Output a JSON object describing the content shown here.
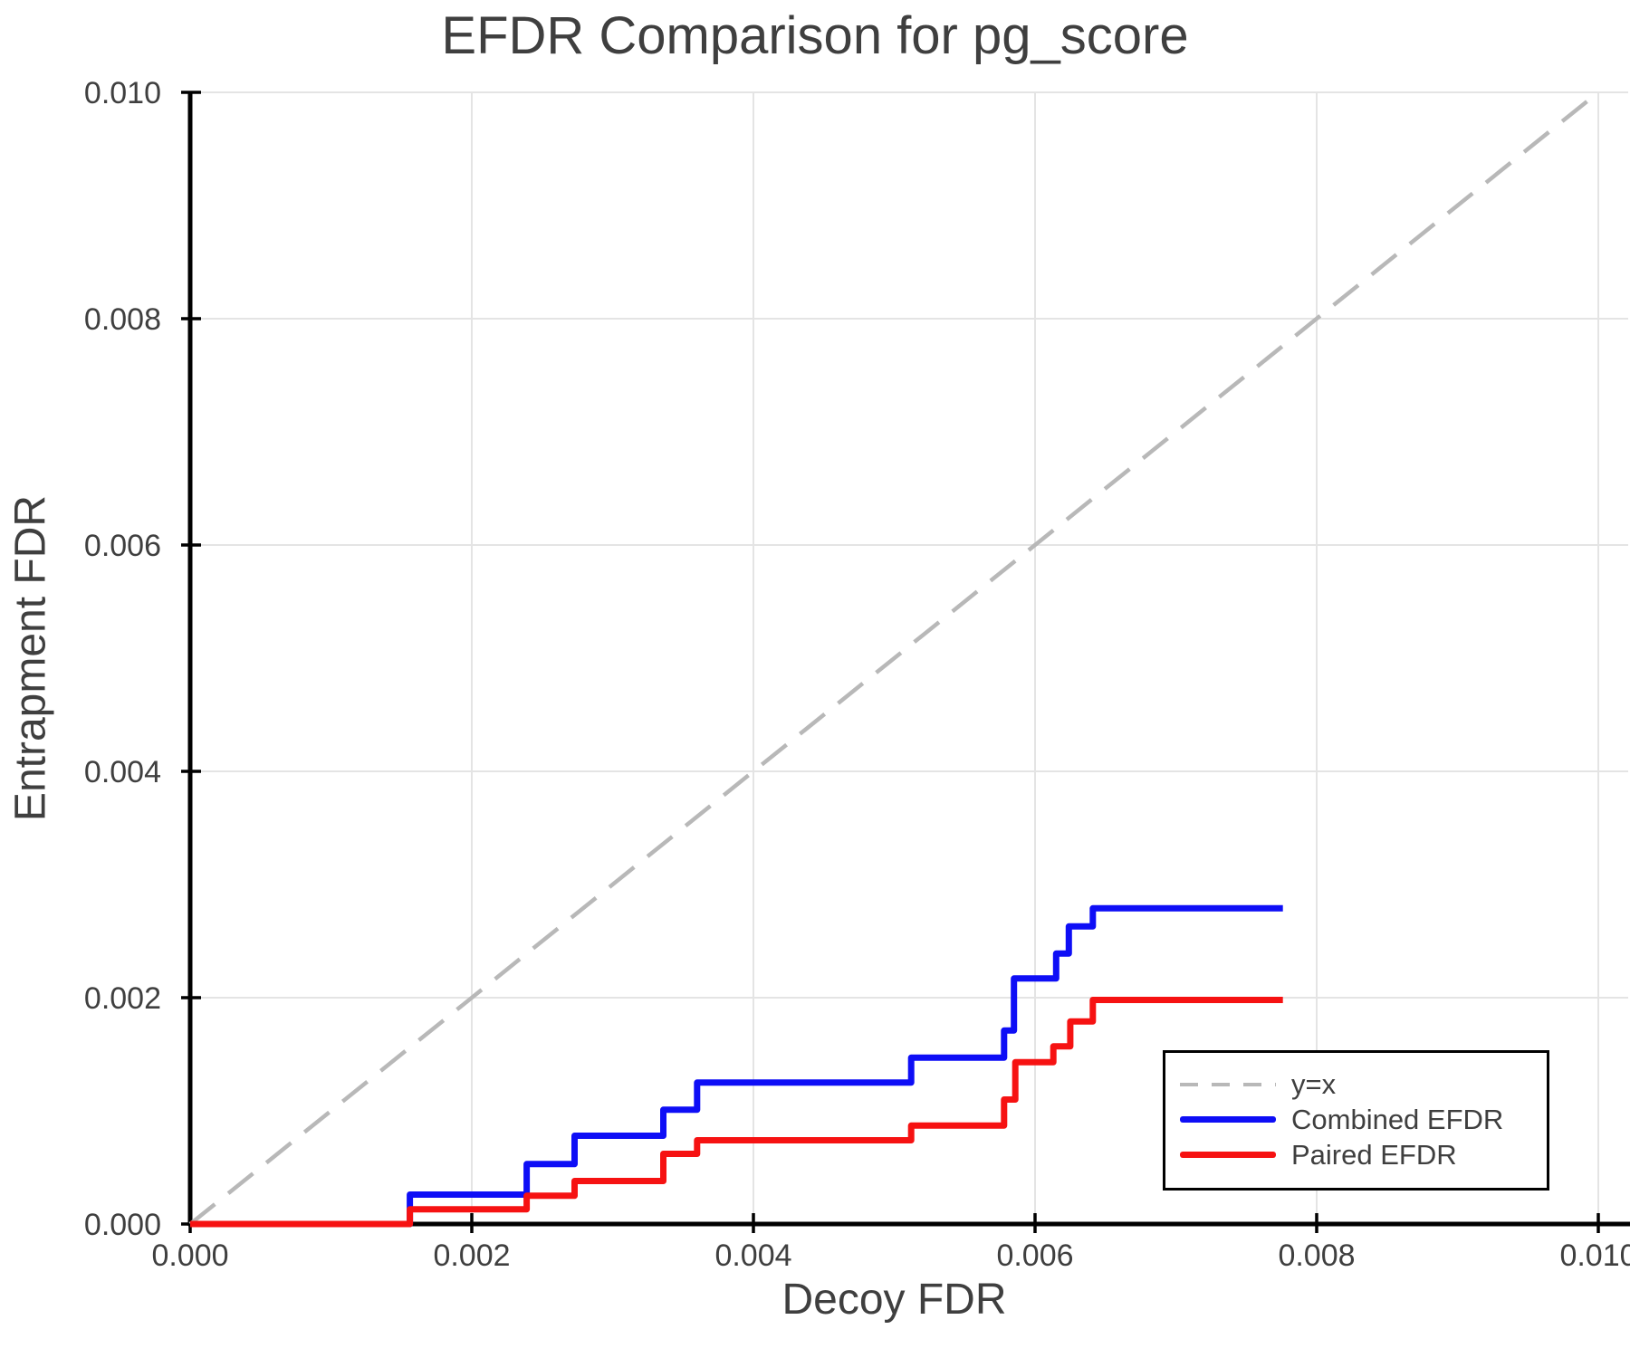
{
  "title": "EFDR Comparison for pg_score",
  "axes": {
    "x": {
      "label": "Decoy FDR",
      "min": 0.0,
      "max": 0.01,
      "ticks": [
        0.0,
        0.002,
        0.004,
        0.006,
        0.008,
        0.01
      ],
      "tick_labels": [
        "0.000",
        "0.002",
        "0.004",
        "0.006",
        "0.008",
        "0.010"
      ]
    },
    "y": {
      "label": "Entrapment FDR",
      "min": 0.0,
      "max": 0.01,
      "ticks": [
        0.0,
        0.002,
        0.004,
        0.006,
        0.008,
        0.01
      ],
      "tick_labels": [
        "0.000",
        "0.002",
        "0.004",
        "0.006",
        "0.008",
        "0.010"
      ]
    }
  },
  "legend": {
    "items": [
      {
        "label": "y=x",
        "color": "#b8b8b8",
        "style": "dashed"
      },
      {
        "label": "Combined EFDR",
        "color": "#0e0ef6",
        "style": "solid"
      },
      {
        "label": "Paired EFDR",
        "color": "#f61212",
        "style": "solid"
      }
    ]
  },
  "colors": {
    "grid": "#e4e4e4",
    "spine": "#000000",
    "text": "#3f3f3f",
    "identity": "#b8b8b8",
    "combined": "#0e0ef6",
    "paired": "#f61212"
  },
  "chart_data": {
    "type": "line",
    "step": true,
    "title": "EFDR Comparison for pg_score",
    "xlabel": "Decoy FDR",
    "ylabel": "Entrapment FDR",
    "xlim": [
      0.0,
      0.01
    ],
    "ylim": [
      0.0,
      0.01
    ],
    "grid": true,
    "legend_position": "bottom-right",
    "identity_line": {
      "label": "y=x",
      "style": "dashed",
      "color": "#b8b8b8",
      "from": [
        0.0,
        0.0
      ],
      "to": [
        0.01,
        0.01
      ]
    },
    "series": [
      {
        "name": "Combined EFDR",
        "color": "#0e0ef6",
        "x": [
          0.0,
          0.00156,
          0.00239,
          0.00273,
          0.00336,
          0.0036,
          0.00512,
          0.00578,
          0.00585,
          0.00615,
          0.00624,
          0.00641,
          0.00776
        ],
        "y": [
          0.0,
          0.00026,
          0.00053,
          0.00078,
          0.00101,
          0.00125,
          0.00147,
          0.00171,
          0.00217,
          0.00239,
          0.00263,
          0.00279,
          0.00279
        ]
      },
      {
        "name": "Paired EFDR",
        "color": "#f61212",
        "x": [
          0.0,
          0.00156,
          0.00239,
          0.00273,
          0.00336,
          0.0036,
          0.00512,
          0.00578,
          0.00586,
          0.00613,
          0.00625,
          0.00641,
          0.00776
        ],
        "y": [
          0.0,
          0.00013,
          0.00025,
          0.00038,
          0.00062,
          0.00074,
          0.00087,
          0.0011,
          0.00143,
          0.00157,
          0.00179,
          0.00198,
          0.00198
        ]
      }
    ]
  }
}
